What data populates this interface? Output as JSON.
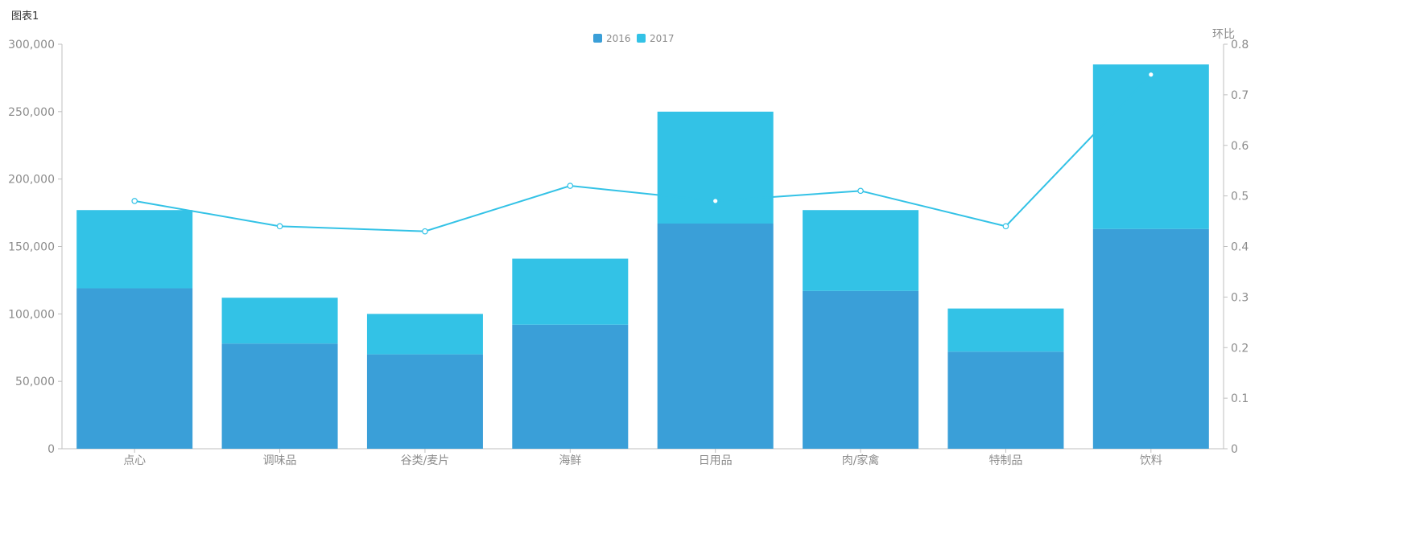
{
  "chart_data": {
    "type": "bar",
    "title": "图表1",
    "categories": [
      "点心",
      "调味品",
      "谷类/麦片",
      "海鲜",
      "日用品",
      "肉/家禽",
      "特制品",
      "饮料"
    ],
    "stacked": true,
    "series": [
      {
        "name": "2016",
        "type": "bar",
        "axis": "left",
        "color": "#3a9fd8",
        "values": [
          119000,
          78000,
          70000,
          92000,
          167000,
          117000,
          72000,
          163000
        ]
      },
      {
        "name": "2017",
        "type": "bar",
        "axis": "left",
        "color": "#33c2e6",
        "values": [
          58000,
          34000,
          30000,
          49000,
          83000,
          60000,
          32000,
          122000
        ]
      },
      {
        "type": "line",
        "axis": "right",
        "color": "#33c2e6",
        "values": [
          0.49,
          0.44,
          0.43,
          0.52,
          0.49,
          0.51,
          0.44,
          0.74
        ]
      }
    ],
    "left_axis": {
      "ylim": [
        0,
        300000
      ],
      "ticks": [
        "0",
        "50,000",
        "100,000",
        "150,000",
        "200,000",
        "250,000",
        "300,000"
      ]
    },
    "right_axis": {
      "label": "环比",
      "ylim": [
        0,
        0.8
      ],
      "ticks": [
        "0",
        "0.1",
        "0.2",
        "0.3",
        "0.4",
        "0.5",
        "0.6",
        "0.7",
        "0.8"
      ]
    },
    "legend": {
      "position": "top-center",
      "entries": [
        "2016",
        "2017"
      ]
    },
    "grid": false
  }
}
